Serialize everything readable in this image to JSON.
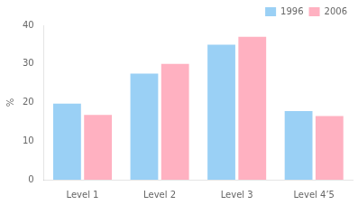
{
  "chart_data": {
    "type": "bar",
    "ylabel": "%",
    "categories": [
      "Level 1",
      "Level 2",
      "Level 3",
      "Level 4’5"
    ],
    "series": [
      {
        "name": "1996",
        "values": [
          19.7,
          27.5,
          35.0,
          17.8
        ]
      },
      {
        "name": "2006",
        "values": [
          16.8,
          30.0,
          37.0,
          16.5
        ]
      }
    ],
    "ylim": [
      0,
      40
    ],
    "yticks": [
      0,
      10,
      20,
      30,
      40
    ],
    "grid": false,
    "legend": "upper right"
  }
}
